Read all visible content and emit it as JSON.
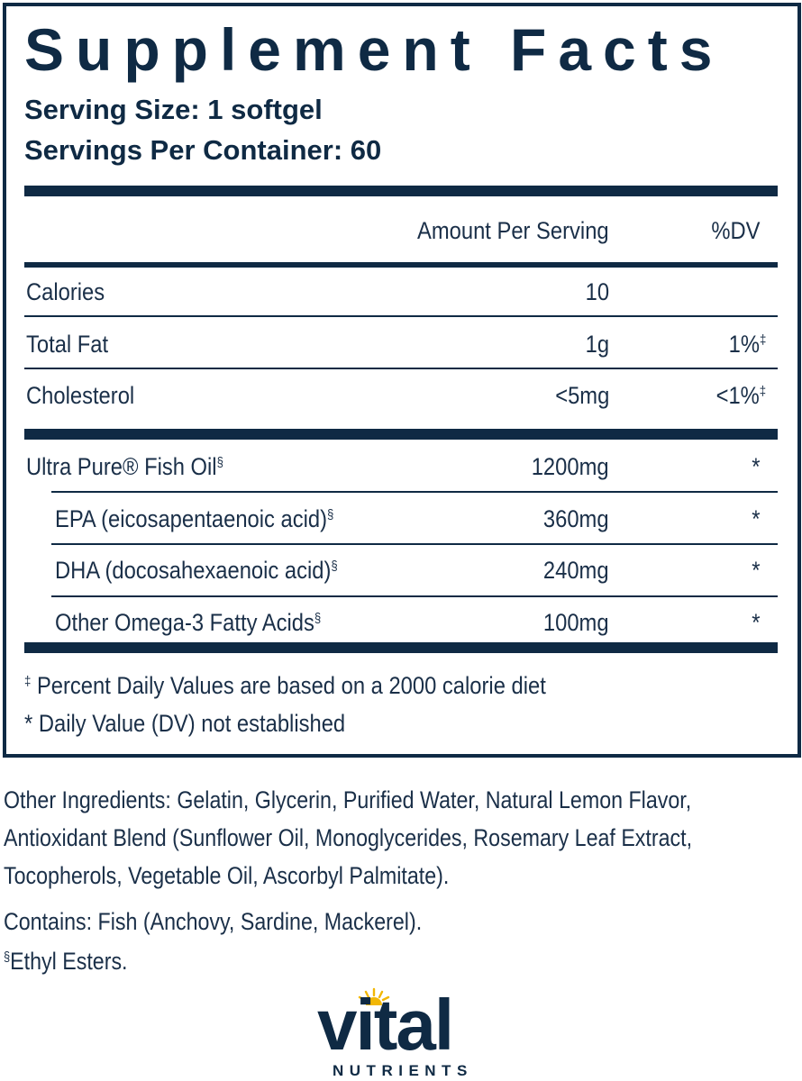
{
  "panel": {
    "title": "Supplement Facts",
    "serving_size": "Serving Size: 1 softgel",
    "servings_per_container": "Servings Per Container: 60",
    "header": {
      "amount": "Amount Per Serving",
      "dv": "%DV"
    },
    "rows": [
      {
        "name": "Calories",
        "amount": "10",
        "dv": "",
        "dv_mark": "",
        "name_mark": "",
        "indent": false
      },
      {
        "name": "Total Fat",
        "amount": "1g",
        "dv": "1%",
        "dv_mark": "‡",
        "name_mark": "",
        "indent": false
      },
      {
        "name": "Cholesterol",
        "amount": "<5mg",
        "dv": "<1%",
        "dv_mark": "‡",
        "name_mark": "",
        "indent": false
      },
      {
        "name": "Ultra Pure® Fish Oil",
        "amount": "1200mg",
        "dv": "*",
        "dv_mark": "",
        "name_mark": "§",
        "indent": false
      },
      {
        "name": "EPA (eicosapentaenoic acid)",
        "amount": "360mg",
        "dv": "*",
        "dv_mark": "",
        "name_mark": "§",
        "indent": true
      },
      {
        "name": "DHA (docosahexaenoic acid)",
        "amount": "240mg",
        "dv": "*",
        "dv_mark": "",
        "name_mark": "§",
        "indent": true
      },
      {
        "name": "Other Omega-3 Fatty Acids",
        "amount": "100mg",
        "dv": "*",
        "dv_mark": "",
        "name_mark": "§",
        "indent": true
      }
    ],
    "footnotes": {
      "f1_mark": "‡",
      "f1_text": " Percent Daily Values are based on a 2000 calorie diet",
      "f2": "* Daily Value (DV) not established"
    }
  },
  "other_ingredients": {
    "lines": [
      "Other Ingredients: Gelatin, Glycerin, Purified Water, Natural Lemon Flavor,",
      "Antioxidant Blend (Sunflower Oil, Monoglycerides, Rosemary Leaf Extract,",
      "Tocopherols, Vegetable Oil, Ascorbyl Palmitate)."
    ],
    "contains": "Contains: Fish (Anchovy, Sardine, Mackerel).",
    "ethyl_mark": "§",
    "ethyl_text": "Ethyl Esters."
  },
  "logo": {
    "word": "vital",
    "sub": "NUTRIENTS",
    "sun_color": "#f2b705"
  },
  "colors": {
    "navy": "#0f2a44",
    "text": "#1a2f48"
  }
}
